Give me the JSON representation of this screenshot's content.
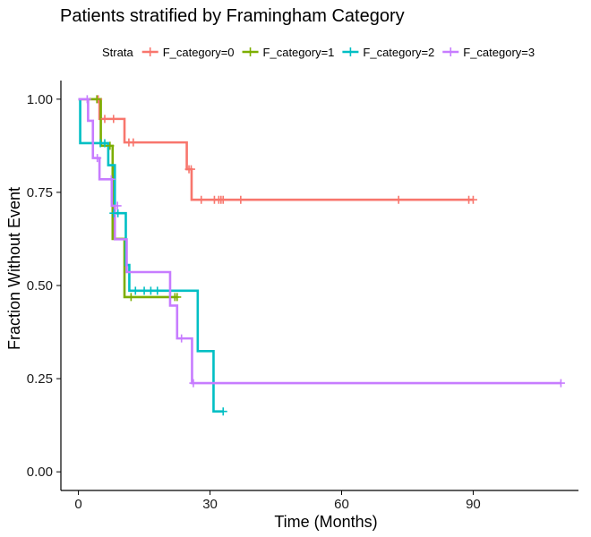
{
  "chart_data": {
    "type": "line",
    "step": true,
    "title": "Patients stratified by Framingham Category",
    "xlabel": "Time (Months)",
    "ylabel": "Fraction Without Event",
    "xlim": [
      -4,
      114
    ],
    "ylim": [
      -0.05,
      1.05
    ],
    "x_ticks": [
      0,
      30,
      60,
      90
    ],
    "y_ticks": [
      0.0,
      0.25,
      0.5,
      0.75,
      1.0
    ],
    "y_tick_labels": [
      "0.00",
      "0.25",
      "0.50",
      "0.75",
      "1.00"
    ],
    "grid": false,
    "legend": {
      "title": "Strata",
      "position": "top"
    },
    "series": [
      {
        "name": "F_category=0",
        "color": "#F8766D",
        "x": [
          0,
          4.8,
          10.5,
          24.7,
          25.8,
          90
        ],
        "y": [
          1.0,
          0.947,
          0.884,
          0.812,
          0.73,
          0.73
        ],
        "censor_x": [
          4.5,
          6,
          8,
          11.5,
          12.5,
          25.2,
          25.7,
          28,
          31,
          32,
          32.5,
          33,
          37,
          73,
          89,
          90
        ],
        "censor_y": [
          1.0,
          0.947,
          0.947,
          0.884,
          0.884,
          0.812,
          0.812,
          0.73,
          0.73,
          0.73,
          0.73,
          0.73,
          0.73,
          0.73,
          0.73,
          0.73
        ]
      },
      {
        "name": "F_category=1",
        "color": "#7CAE00",
        "x": [
          0,
          5.1,
          7.8,
          10.5,
          22.5
        ],
        "y": [
          1.0,
          0.875,
          0.625,
          0.469,
          0.469
        ],
        "censor_x": [
          4.2,
          7.2,
          12,
          22,
          22.5
        ],
        "censor_y": [
          1.0,
          0.875,
          0.469,
          0.469,
          0.469
        ]
      },
      {
        "name": "F_category=2",
        "color": "#00BFC4",
        "x": [
          0,
          0.4,
          6.8,
          8.3,
          10.8,
          11.6,
          27.2,
          30.8,
          33
        ],
        "y": [
          1.0,
          0.882,
          0.823,
          0.694,
          0.555,
          0.486,
          0.324,
          0.162,
          0.162
        ],
        "censor_x": [
          5,
          6,
          8,
          9,
          13,
          15,
          16.5,
          18,
          33
        ],
        "censor_y": [
          0.882,
          0.882,
          0.694,
          0.694,
          0.486,
          0.486,
          0.486,
          0.486,
          0.162
        ]
      },
      {
        "name": "F_category=3",
        "color": "#C77CFF",
        "x": [
          0,
          2.2,
          3.3,
          4.8,
          7.6,
          8.3,
          11,
          13.3,
          20.9,
          22.5,
          25.9,
          110
        ],
        "y": [
          1.0,
          0.942,
          0.842,
          0.785,
          0.714,
          0.624,
          0.536,
          0.536,
          0.446,
          0.358,
          0.238,
          0.238
        ],
        "censor_x": [
          2,
          4.3,
          7.5,
          8.9,
          23.5,
          26.2,
          110
        ],
        "censor_y": [
          1.0,
          0.842,
          0.785,
          0.714,
          0.358,
          0.238,
          0.238
        ]
      }
    ]
  }
}
